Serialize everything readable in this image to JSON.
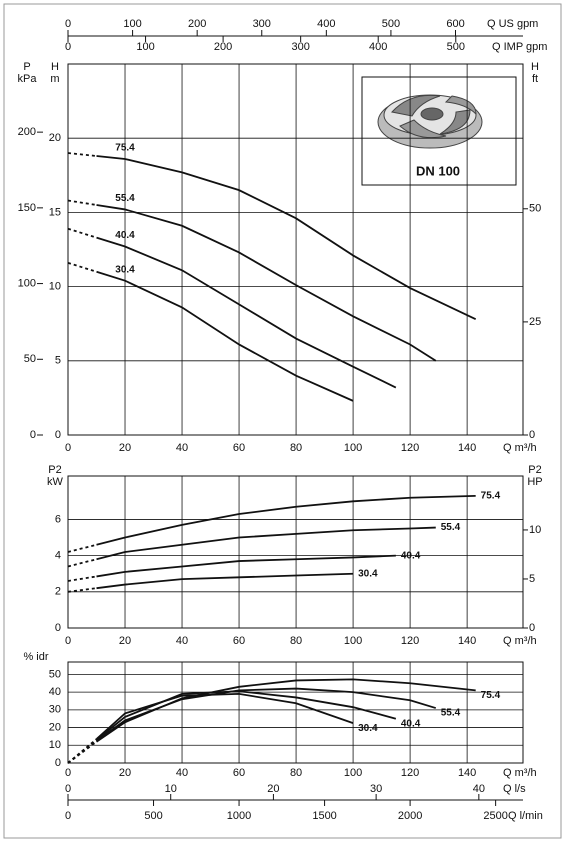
{
  "chart_data": [
    {
      "type": "line",
      "x_label": "Q m³/h",
      "xlim": [
        0,
        159.6
      ],
      "xticks": [
        0,
        20,
        40,
        60,
        80,
        100,
        120,
        140
      ],
      "y_label": [
        "H",
        "m"
      ],
      "ylim": [
        0,
        25
      ],
      "yticks": [
        0,
        5,
        10,
        15,
        20
      ],
      "y3_label": [
        "P",
        "kPa"
      ],
      "y3lim": [
        0,
        245
      ],
      "y3ticks": [
        0,
        50,
        100,
        150,
        200
      ],
      "y2_label": [
        "H",
        "ft"
      ],
      "y2lim": [
        0,
        82
      ],
      "y2ticks": [
        0,
        25,
        50
      ],
      "top_axes": [
        {
          "label": "Q US gpm",
          "xlim": [
            0,
            704.5
          ],
          "xticks": [
            0,
            100,
            200,
            300,
            400,
            500,
            600
          ]
        },
        {
          "label": "Q IMP gpm",
          "xlim": [
            0,
            586.7
          ],
          "xticks": [
            0,
            100,
            200,
            300,
            400,
            500
          ]
        }
      ],
      "inset_label": "DN 100",
      "grid": true,
      "color": "#111",
      "series": [
        {
          "name": "75.4",
          "x": [
            0,
            10,
            20,
            40,
            60,
            80,
            100,
            120,
            143
          ],
          "values": [
            19.0,
            18.8,
            18.6,
            17.7,
            16.5,
            14.6,
            12.1,
            9.9,
            7.8
          ]
        },
        {
          "name": "55.4",
          "x": [
            0,
            10,
            20,
            40,
            60,
            80,
            100,
            120,
            129
          ],
          "values": [
            15.8,
            15.5,
            15.2,
            14.1,
            12.3,
            10.1,
            8.0,
            6.1,
            5.0
          ]
        },
        {
          "name": "40.4",
          "x": [
            0,
            10,
            20,
            40,
            60,
            80,
            100,
            115
          ],
          "values": [
            13.9,
            13.3,
            12.7,
            11.1,
            8.8,
            6.5,
            4.6,
            3.2
          ]
        },
        {
          "name": "30.4",
          "x": [
            0,
            10,
            20,
            40,
            60,
            80,
            100
          ],
          "values": [
            11.6,
            11.0,
            10.4,
            8.6,
            6.1,
            4.0,
            2.3
          ]
        }
      ]
    },
    {
      "type": "line",
      "x_label": "Q m³/h",
      "xlim": [
        0,
        159.6
      ],
      "xticks": [
        0,
        20,
        40,
        60,
        80,
        100,
        120,
        140
      ],
      "y_label": [
        "P2",
        "kW"
      ],
      "ylim": [
        0,
        8.4
      ],
      "yticks": [
        0,
        2,
        4,
        6
      ],
      "y2_label": [
        "P2",
        "HP"
      ],
      "y2lim": [
        0,
        15.5
      ],
      "y2ticks": [
        0,
        5,
        10
      ],
      "grid": true,
      "color": "#111",
      "series": [
        {
          "name": "75.4",
          "x": [
            0,
            10,
            20,
            40,
            60,
            80,
            100,
            120,
            143
          ],
          "values": [
            4.2,
            4.6,
            5.0,
            5.7,
            6.3,
            6.7,
            7.0,
            7.2,
            7.3
          ]
        },
        {
          "name": "55.4",
          "x": [
            0,
            10,
            20,
            40,
            60,
            80,
            100,
            120,
            129
          ],
          "values": [
            3.4,
            3.8,
            4.2,
            4.6,
            5.0,
            5.2,
            5.4,
            5.5,
            5.55
          ]
        },
        {
          "name": "40.4",
          "x": [
            0,
            10,
            20,
            40,
            60,
            80,
            100,
            115
          ],
          "values": [
            2.6,
            2.85,
            3.1,
            3.4,
            3.7,
            3.8,
            3.9,
            4.0
          ]
        },
        {
          "name": "30.4",
          "x": [
            0,
            10,
            20,
            40,
            60,
            80,
            100
          ],
          "values": [
            2.0,
            2.2,
            2.4,
            2.7,
            2.8,
            2.9,
            3.0
          ]
        }
      ]
    },
    {
      "type": "line",
      "x_label": "Q m³/h",
      "xlim": [
        0,
        159.6
      ],
      "xticks": [
        0,
        20,
        40,
        60,
        80,
        100,
        120,
        140
      ],
      "y_label": [
        "% idr"
      ],
      "ylim": [
        0,
        57
      ],
      "yticks": [
        0,
        10,
        20,
        30,
        40,
        50
      ],
      "bottom_axes": [
        {
          "label": "Q l/s",
          "xlim": [
            0,
            44.3
          ],
          "xticks": [
            0,
            10,
            20,
            30,
            40
          ]
        },
        {
          "label": "Q l/min",
          "xlim": [
            0,
            2660
          ],
          "xticks": [
            0,
            500,
            1000,
            1500,
            2000,
            2500
          ]
        }
      ],
      "grid": true,
      "color": "#111",
      "series": [
        {
          "name": "75.4",
          "x": [
            0,
            10,
            20,
            40,
            60,
            80,
            100,
            120,
            143
          ],
          "values": [
            0,
            12,
            23,
            36.5,
            43,
            46.6,
            47.2,
            45,
            41
          ]
        },
        {
          "name": "55.4",
          "x": [
            0,
            10,
            20,
            40,
            60,
            80,
            100,
            120,
            129
          ],
          "values": [
            0,
            12.5,
            24,
            36,
            41,
            42,
            40,
            35.4,
            31
          ]
        },
        {
          "name": "40.4",
          "x": [
            0,
            10,
            20,
            40,
            60,
            80,
            100,
            115
          ],
          "values": [
            0,
            13,
            26,
            39,
            40.5,
            37,
            31.5,
            25
          ]
        },
        {
          "name": "30.4",
          "x": [
            0,
            10,
            20,
            40,
            60,
            80,
            100
          ],
          "values": [
            0,
            13.5,
            28,
            38,
            39,
            33.7,
            22.5
          ]
        }
      ]
    }
  ]
}
